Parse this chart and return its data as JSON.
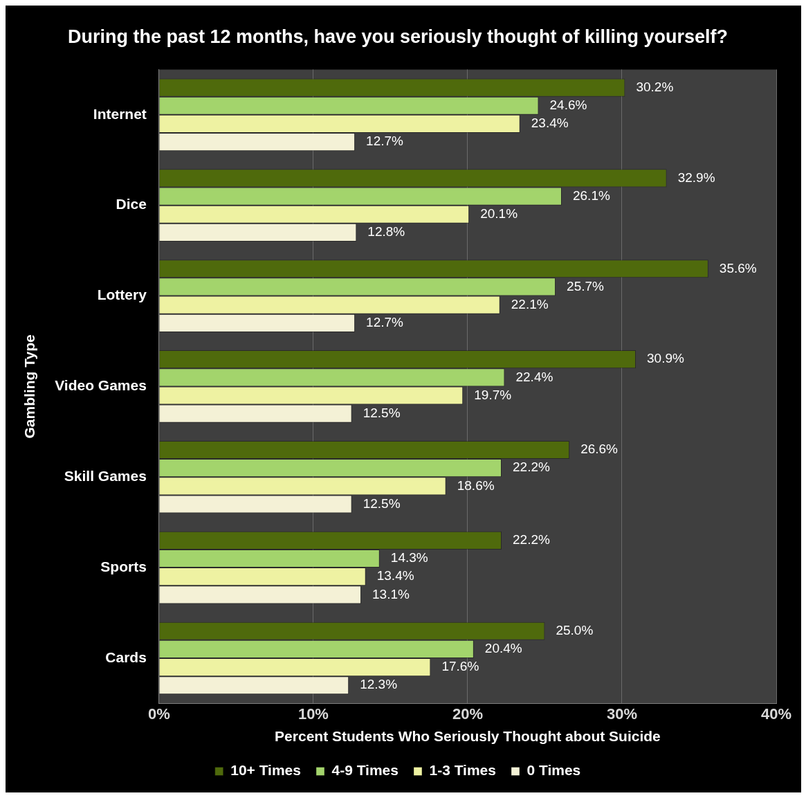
{
  "chart_data": {
    "type": "bar",
    "orientation": "horizontal",
    "title": "During the past 12 months, have you seriously thought of killing yourself?",
    "xlabel": "Percent Students Who Seriously Thought about Suicide",
    "ylabel": "Gambling Type",
    "categories": [
      "Internet",
      "Dice",
      "Lottery",
      "Video Games",
      "Skill Games",
      "Sports",
      "Cards"
    ],
    "series": [
      {
        "name": "10+ Times",
        "color": "#4f6a0c",
        "values": [
          30.2,
          32.9,
          35.6,
          30.9,
          26.6,
          22.2,
          25.0
        ],
        "value_labels": [
          "30.2%",
          "32.9%",
          "35.6%",
          "30.9%",
          "26.6%",
          "22.2%",
          "25.0%"
        ]
      },
      {
        "name": "4-9 Times",
        "color": "#a3d46c",
        "values": [
          24.6,
          26.1,
          25.7,
          22.4,
          22.2,
          14.3,
          20.4
        ],
        "value_labels": [
          "24.6%",
          "26.1%",
          "25.7%",
          "22.4%",
          "22.2%",
          "14.3%",
          "20.4%"
        ]
      },
      {
        "name": "1-3 Times",
        "color": "#eef2a2",
        "values": [
          23.4,
          20.1,
          22.1,
          19.7,
          18.6,
          13.4,
          17.6
        ],
        "value_labels": [
          "23.4%",
          "20.1%",
          "22.1%",
          "19.7%",
          "18.6%",
          "13.4%",
          "17.6%"
        ]
      },
      {
        "name": "0 Times",
        "color": "#f4f1d6",
        "values": [
          12.7,
          12.8,
          12.7,
          12.5,
          12.5,
          13.1,
          12.3
        ],
        "value_labels": [
          "12.7%",
          "12.8%",
          "12.7%",
          "12.5%",
          "12.5%",
          "13.1%",
          "12.3%"
        ]
      }
    ],
    "xlim": [
      0,
      40
    ],
    "xticks": [
      {
        "value": 0,
        "label": "0%"
      },
      {
        "value": 10,
        "label": "10%"
      },
      {
        "value": 20,
        "label": "20%"
      },
      {
        "value": 30,
        "label": "30%"
      },
      {
        "value": 40,
        "label": "40%"
      }
    ],
    "grid": "x",
    "legend": "bottom"
  }
}
